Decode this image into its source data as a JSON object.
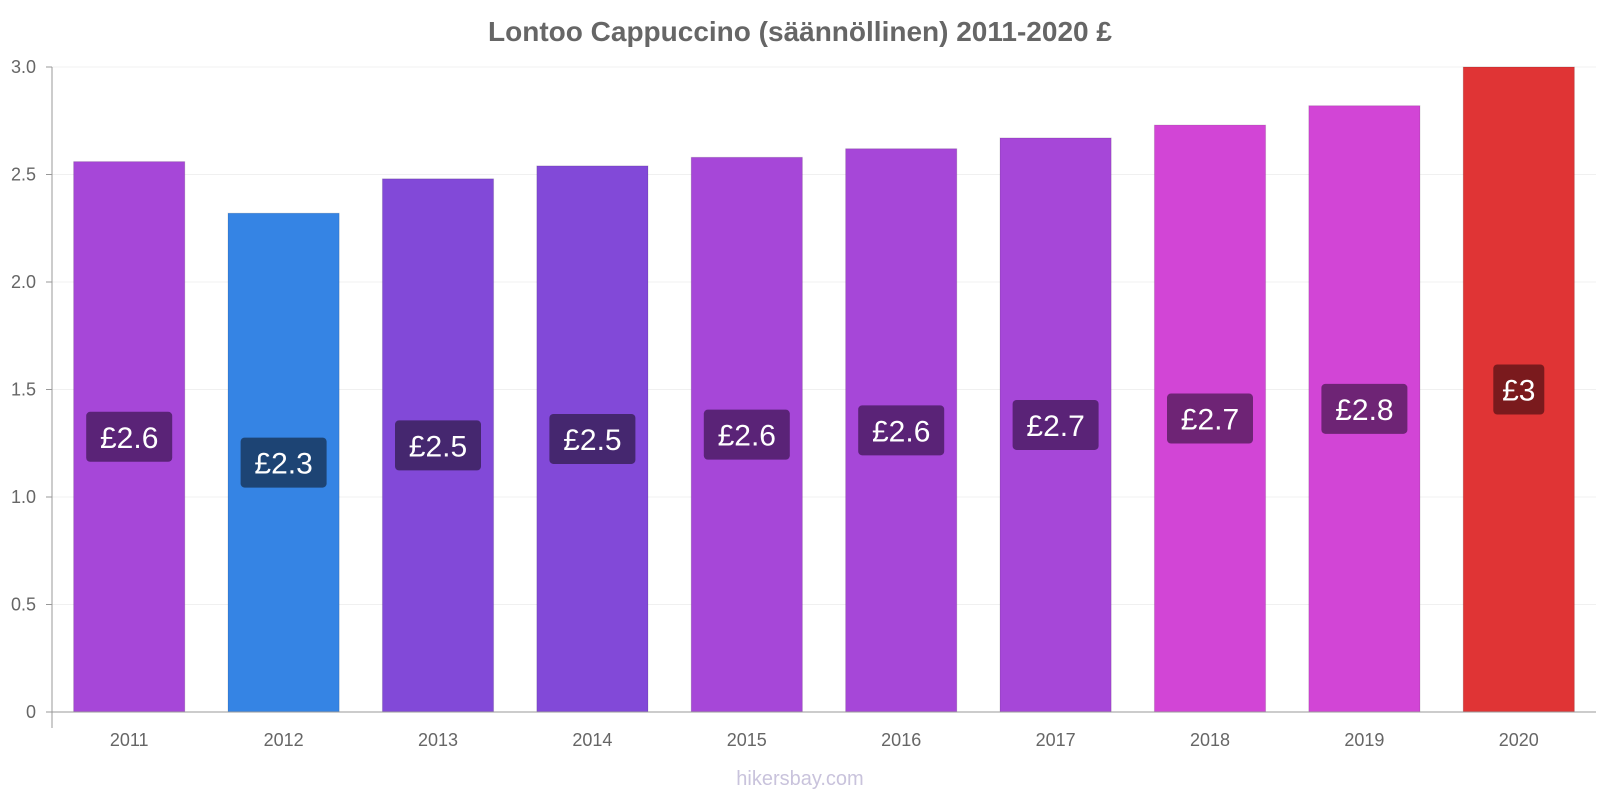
{
  "chart_data": {
    "type": "bar",
    "title": "Lontoo Cappuccino (säännöllinen) 2011-2020 £",
    "xlabel": "",
    "ylabel": "",
    "categories": [
      "2011",
      "2012",
      "2013",
      "2014",
      "2015",
      "2016",
      "2017",
      "2018",
      "2019",
      "2020"
    ],
    "values": [
      2.56,
      2.32,
      2.48,
      2.54,
      2.58,
      2.62,
      2.67,
      2.73,
      2.82,
      3.0
    ],
    "data_labels": [
      "£2.6",
      "£2.3",
      "£2.5",
      "£2.5",
      "£2.6",
      "£2.6",
      "£2.7",
      "£2.7",
      "£2.8",
      "£3"
    ],
    "bar_colors": [
      "#a647d8",
      "#3584e4",
      "#8249d8",
      "#8249d8",
      "#a647d8",
      "#a647d8",
      "#a647d8",
      "#d245d6",
      "#d245d6",
      "#e03435"
    ],
    "label_colors": [
      "#5a2377",
      "#1d4474",
      "#45276f",
      "#45276f",
      "#5a2377",
      "#5a2377",
      "#5a2377",
      "#6e2475",
      "#6e2475",
      "#7a1a1d"
    ],
    "ylim": [
      0,
      3.0
    ],
    "yticks": [
      0,
      0.5,
      1.0,
      1.5,
      2.0,
      2.5,
      3.0
    ],
    "ytick_labels": [
      "0",
      "0.5",
      "1.0",
      "1.5",
      "2.0",
      "2.5",
      "3.0"
    ],
    "grid": true,
    "legend": "none"
  },
  "watermark": "hikersbay.com"
}
